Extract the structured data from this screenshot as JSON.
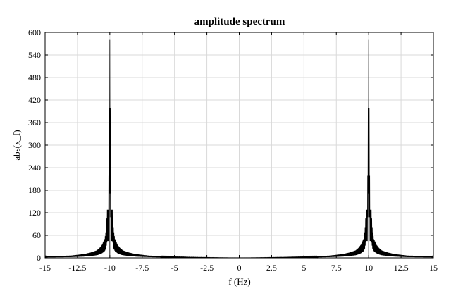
{
  "chart_data": {
    "type": "line",
    "title": "amplitude spectrum",
    "xlabel": "f (Hz)",
    "ylabel": "abs(x_f)",
    "xlim": [
      -15,
      15
    ],
    "ylim": [
      0,
      600
    ],
    "xticks": [
      -15,
      -12.5,
      -10,
      -7.5,
      -5,
      -2.5,
      0,
      2.5,
      5,
      7.5,
      10,
      12.5,
      15
    ],
    "xtick_labels": [
      "-15",
      "-12.5",
      "-10",
      "-7.5",
      "-5",
      "-2.5",
      "0",
      "2.5",
      "5",
      "7.5",
      "10",
      "12.5",
      "15"
    ],
    "yticks": [
      0,
      60,
      120,
      180,
      240,
      300,
      360,
      420,
      480,
      540,
      600
    ],
    "ytick_labels": [
      "0",
      "60",
      "120",
      "180",
      "240",
      "300",
      "360",
      "420",
      "480",
      "540",
      "600"
    ],
    "grid": true,
    "series": [
      {
        "color": "#000000",
        "peaks": [
          {
            "x": -10,
            "y": 580
          },
          {
            "x": 10,
            "y": 580
          }
        ],
        "x": [
          -15,
          -14,
          -13,
          -12.5,
          -12,
          -11.5,
          -11,
          -10.8,
          -10.6,
          -10.4,
          -10.3,
          -10.2,
          -10.1,
          -10,
          -9.9,
          -9.8,
          -9.7,
          -9.6,
          -9.4,
          -9.2,
          -9,
          -8.5,
          -8,
          -7,
          -6,
          -5,
          -4,
          -3,
          -2,
          -1,
          0,
          1,
          2,
          3,
          4,
          5,
          6,
          7,
          8,
          8.5,
          9,
          9.2,
          9.4,
          9.6,
          9.7,
          9.8,
          9.9,
          10,
          10.1,
          10.2,
          10.3,
          10.4,
          10.6,
          10.8,
          11,
          11.5,
          12,
          12.5,
          13,
          14,
          15
        ],
        "y": [
          4,
          5,
          6,
          8,
          10,
          14,
          20,
          26,
          35,
          50,
          70,
          128,
          128,
          580,
          128,
          128,
          70,
          50,
          35,
          26,
          20,
          14,
          10,
          6,
          4,
          3,
          2,
          1.5,
          1,
          0.5,
          0.3,
          0.5,
          1,
          1.5,
          2,
          3,
          4,
          6,
          10,
          14,
          20,
          26,
          35,
          50,
          70,
          128,
          128,
          580,
          128,
          128,
          70,
          50,
          35,
          26,
          20,
          14,
          10,
          8,
          6,
          5,
          4
        ]
      }
    ]
  }
}
